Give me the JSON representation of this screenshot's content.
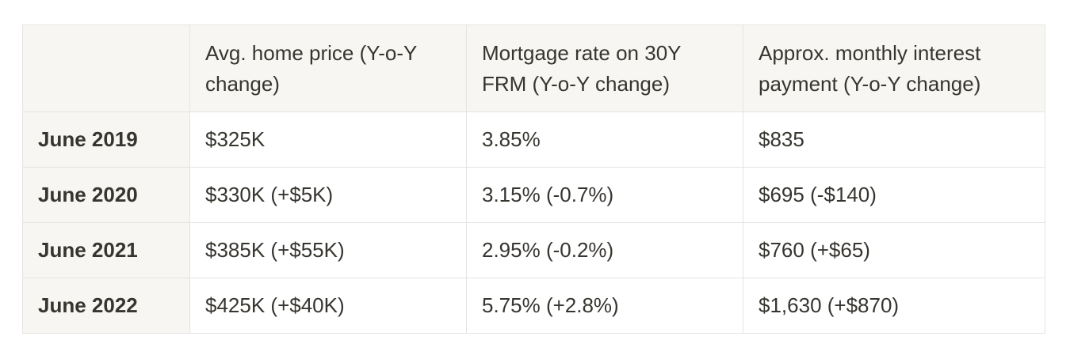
{
  "table": {
    "columns": [
      "",
      "Avg. home price (Y-o-Y change)",
      "Mortgage rate on 30Y FRM (Y-o-Y change)",
      "Approx. monthly interest payment (Y-o-Y change)"
    ],
    "rows": [
      [
        "June 2019",
        "$325K",
        "3.85%",
        "$835"
      ],
      [
        "June 2020",
        "$330K (+$5K)",
        "3.15% (-0.7%)",
        "$695 (-$140)"
      ],
      [
        "June 2021",
        "$385K (+$55K)",
        "2.95% (-0.2%)",
        "$760 (+$65)"
      ],
      [
        "June 2022",
        "$425K (+$40K)",
        "5.75% (+2.8%)",
        "$1,630 (+$870)"
      ]
    ]
  },
  "colors": {
    "header_bg": "#f7f6f3",
    "border": "#e5e4e1",
    "text": "#37352f"
  }
}
